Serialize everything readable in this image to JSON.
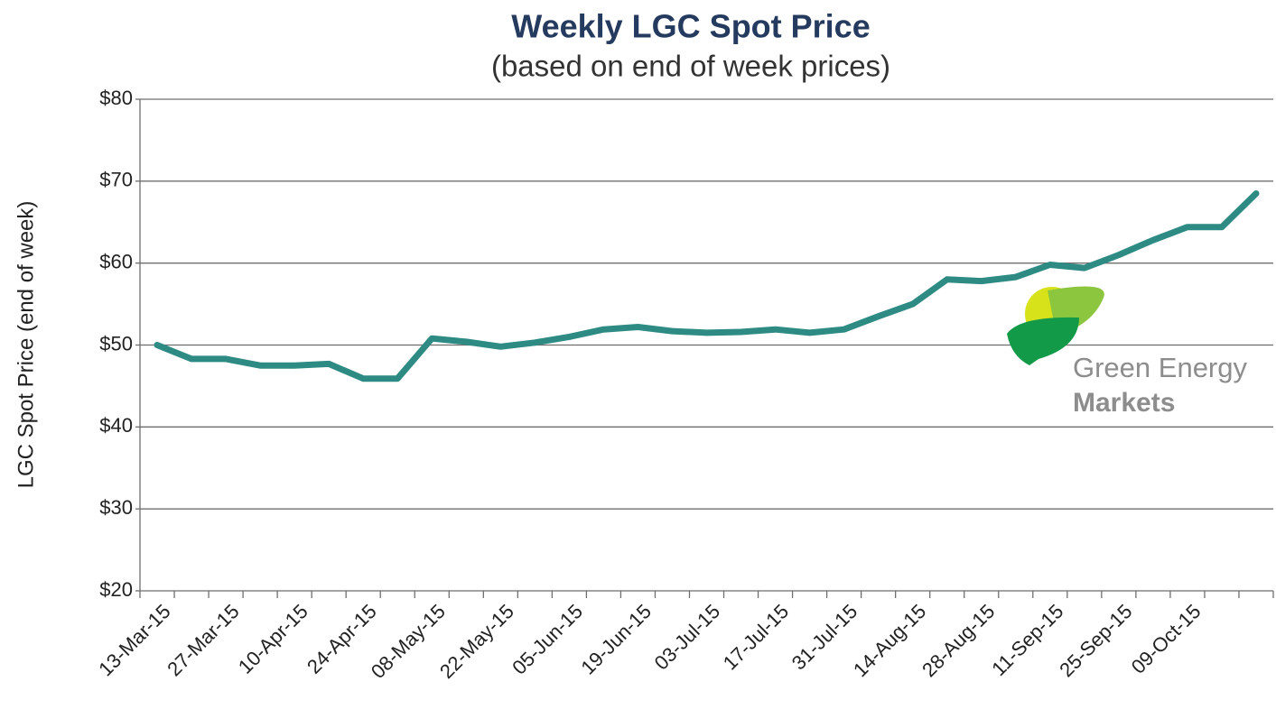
{
  "chart_data": {
    "type": "line",
    "title": "Weekly LGC Spot Price",
    "subtitle": "(based on end of week prices)",
    "y_label": "LGC Spot Price (end of week)",
    "logo": {
      "line1": "Green Energy",
      "line2": "Markets"
    },
    "categories": [
      "13-Mar-15",
      null,
      "27-Mar-15",
      null,
      "10-Apr-15",
      null,
      "24-Apr-15",
      null,
      "08-May-15",
      null,
      "22-May-15",
      null,
      "05-Jun-15",
      null,
      "19-Jun-15",
      null,
      "03-Jul-15",
      null,
      "17-Jul-15",
      null,
      "31-Jul-15",
      null,
      "14-Aug-15",
      null,
      "28-Aug-15",
      null,
      "11-Sep-15",
      null,
      "25-Sep-15",
      null,
      "09-Oct-15",
      null,
      null
    ],
    "series": [
      {
        "name": "LGC Spot Price",
        "color": "#2e8b84",
        "values": [
          50,
          48.3,
          48.3,
          47.5,
          47.5,
          47.7,
          45.9,
          45.9,
          50.8,
          50.4,
          49.8,
          50.3,
          51,
          51.9,
          52.2,
          51.7,
          51.5,
          51.6,
          51.9,
          51.5,
          51.9,
          53.5,
          55,
          58,
          57.8,
          58.3,
          59.8,
          59.4,
          61,
          62.8,
          64.4,
          64.4,
          68.5
        ]
      }
    ],
    "ylim": [
      20,
      80
    ],
    "yticks": [
      {
        "value": 20,
        "label": "$20"
      },
      {
        "value": 30,
        "label": "$30"
      },
      {
        "value": 40,
        "label": "$40"
      },
      {
        "value": 50,
        "label": "$50"
      },
      {
        "value": 60,
        "label": "$60"
      },
      {
        "value": 70,
        "label": "$70"
      },
      {
        "value": 80,
        "label": "$80"
      }
    ],
    "grid": true
  }
}
